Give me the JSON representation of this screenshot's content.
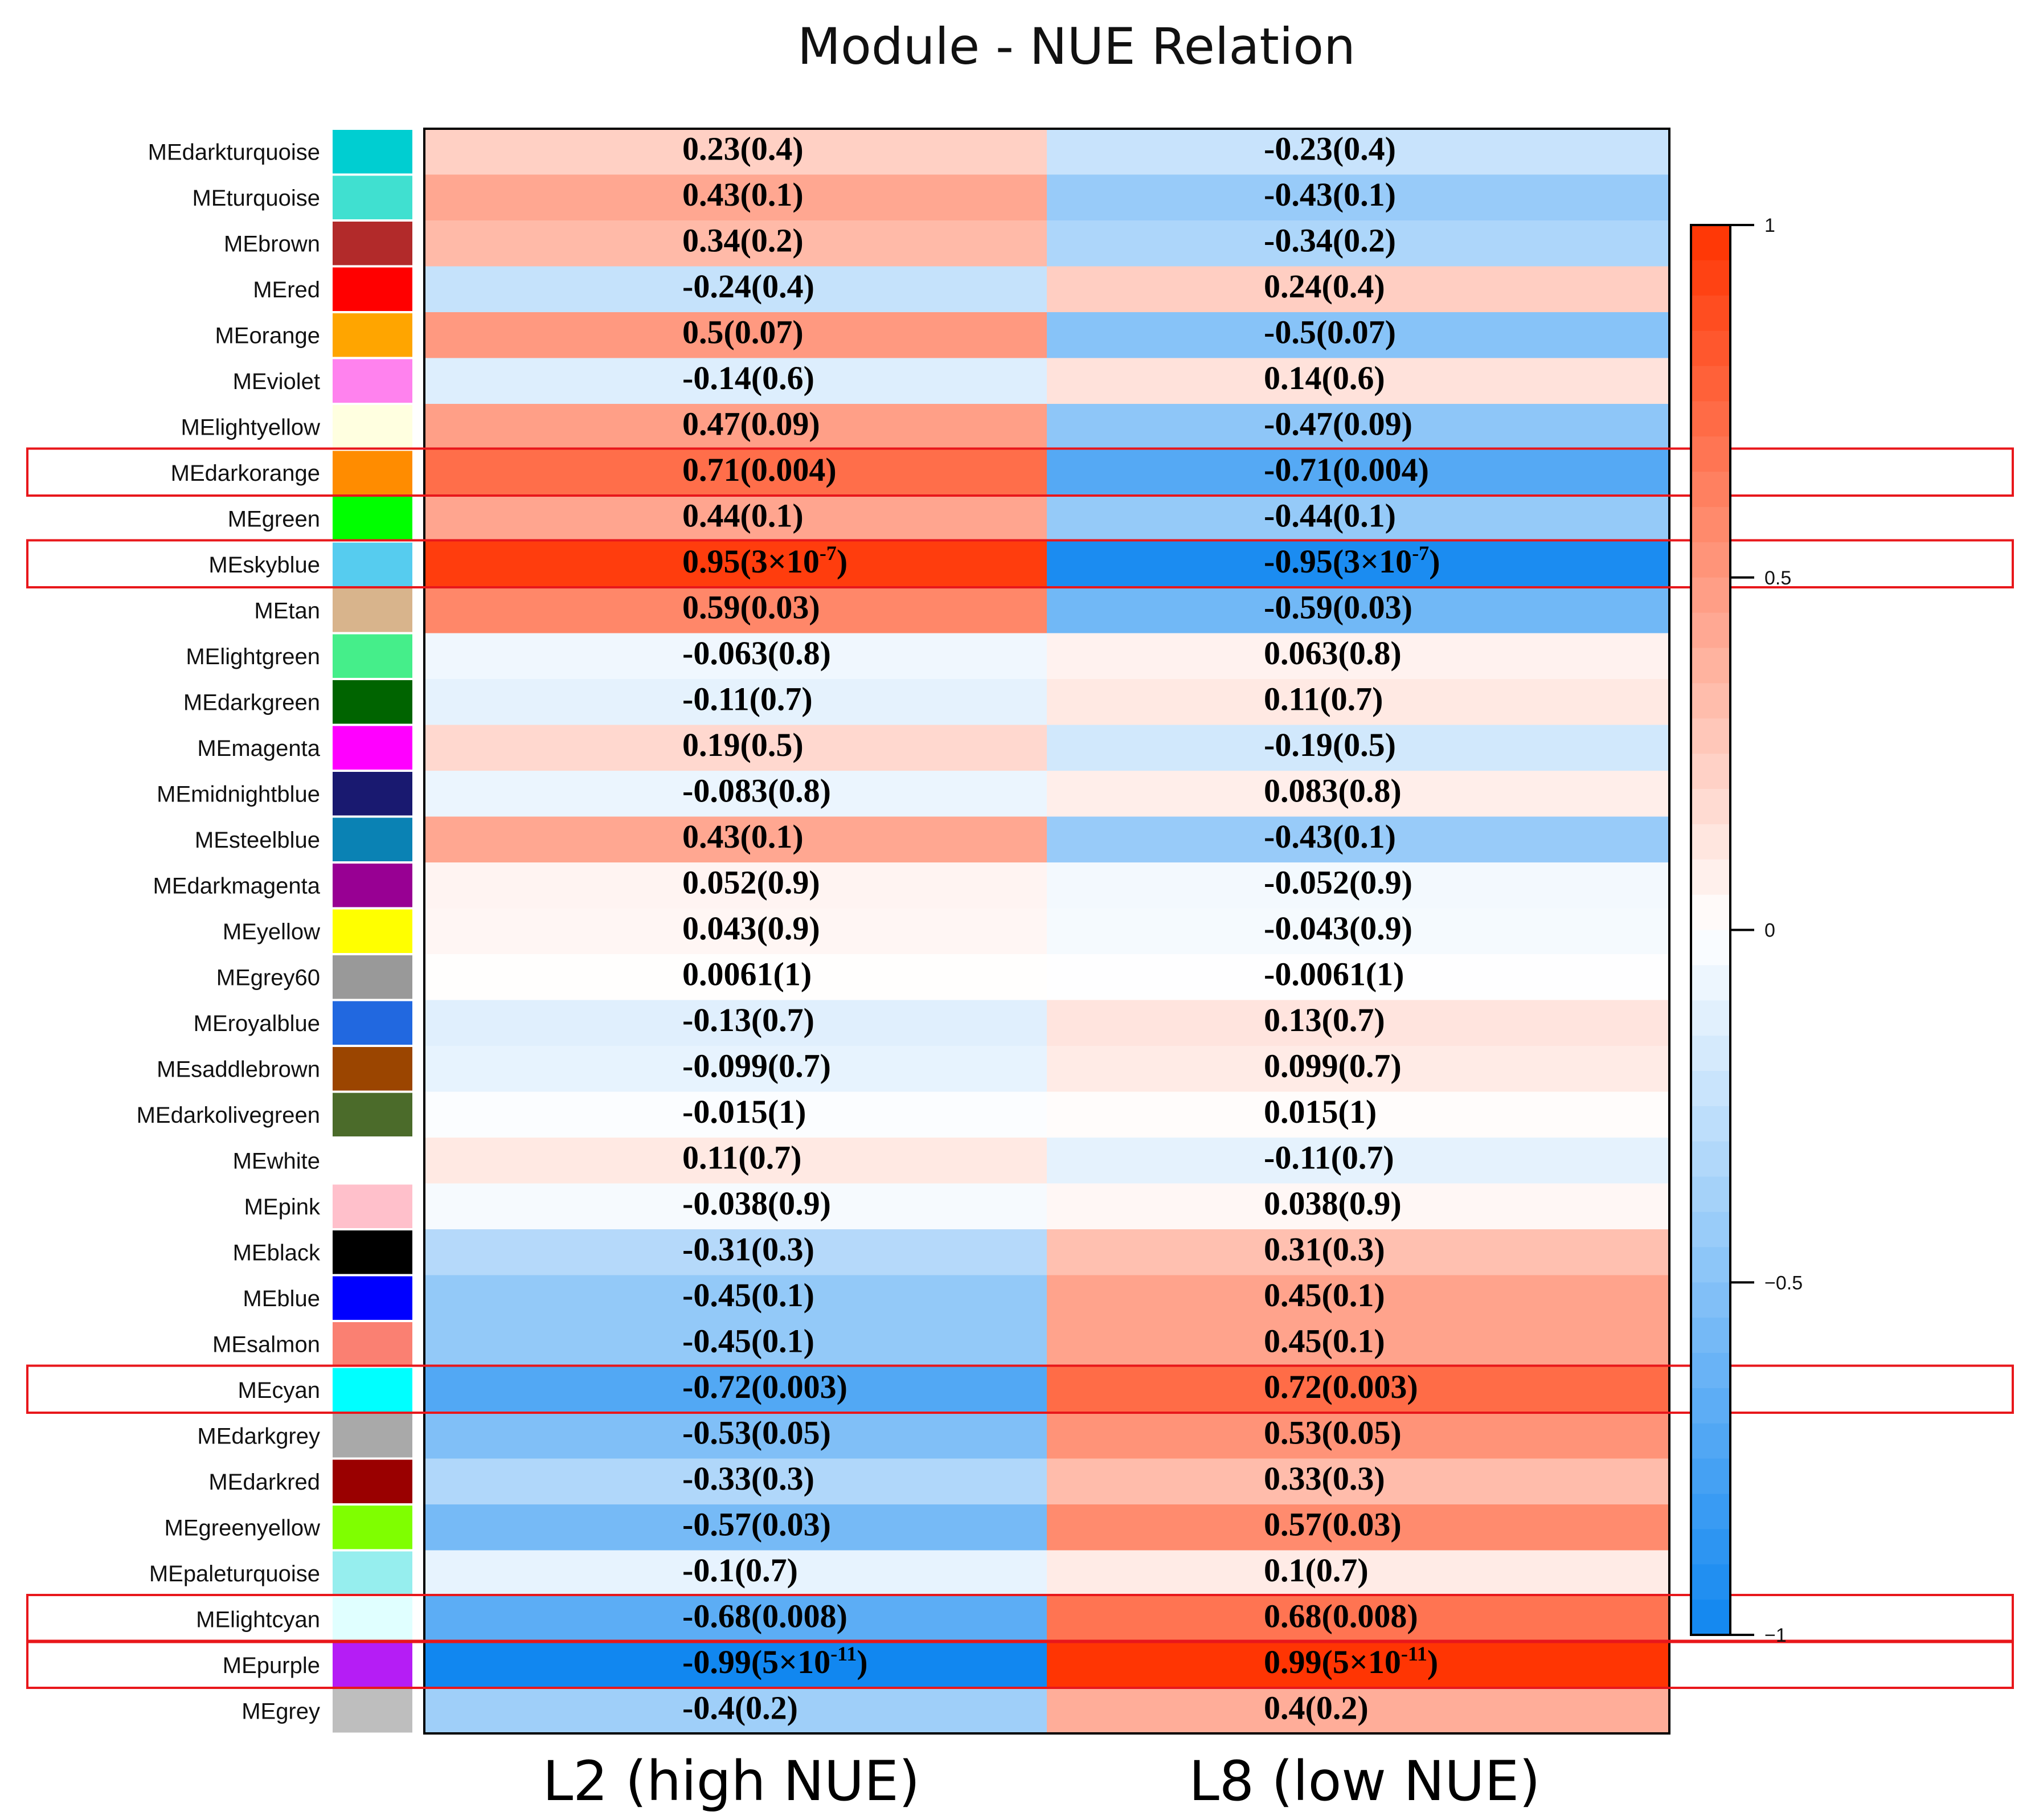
{
  "chart_data": {
    "type": "heatmap",
    "title": "Module - NUE Relation",
    "columns": [
      "L2 (high NUE)",
      "L8 (low NUE)"
    ],
    "rows": [
      {
        "label": "MEdarkturquoise",
        "swatch": "#00CED1",
        "values": [
          0.23,
          -0.23
        ],
        "texts": [
          "0.23(0.4)",
          "-0.23(0.4)"
        ]
      },
      {
        "label": "MEturquoise",
        "swatch": "#40E0D0",
        "values": [
          0.43,
          -0.43
        ],
        "texts": [
          "0.43(0.1)",
          "-0.43(0.1)"
        ]
      },
      {
        "label": "MEbrown",
        "swatch": "#B22A2A",
        "values": [
          0.34,
          -0.34
        ],
        "texts": [
          "0.34(0.2)",
          "-0.34(0.2)"
        ]
      },
      {
        "label": "MEred",
        "swatch": "#FF0000",
        "values": [
          -0.24,
          0.24
        ],
        "texts": [
          "-0.24(0.4)",
          "0.24(0.4)"
        ]
      },
      {
        "label": "MEorange",
        "swatch": "#FFA500",
        "values": [
          0.5,
          -0.5
        ],
        "texts": [
          "0.5(0.07)",
          "-0.5(0.07)"
        ]
      },
      {
        "label": "MEviolet",
        "swatch": "#FF82EE",
        "values": [
          -0.14,
          0.14
        ],
        "texts": [
          "-0.14(0.6)",
          "0.14(0.6)"
        ]
      },
      {
        "label": "MElightyellow",
        "swatch": "#FFFFE0",
        "values": [
          0.47,
          -0.47
        ],
        "texts": [
          "0.47(0.09)",
          "-0.47(0.09)"
        ]
      },
      {
        "label": "MEdarkorange",
        "swatch": "#FF8C00",
        "values": [
          0.71,
          -0.71
        ],
        "texts": [
          "0.71(0.004)",
          "-0.71(0.004)"
        ],
        "highlight": true
      },
      {
        "label": "MEgreen",
        "swatch": "#00FF00",
        "values": [
          0.44,
          -0.44
        ],
        "texts": [
          "0.44(0.1)",
          "-0.44(0.1)"
        ]
      },
      {
        "label": "MEskyblue",
        "swatch": "#56CCEF",
        "values": [
          0.95,
          -0.95
        ],
        "texts": [
          "0.95(3×10",
          "-0.95(3×10"
        ],
        "sup": [
          "-7",
          "-7"
        ],
        "highlight": true
      },
      {
        "label": "MEtan",
        "swatch": "#D8B48C",
        "values": [
          0.59,
          -0.59
        ],
        "texts": [
          "0.59(0.03)",
          "-0.59(0.03)"
        ]
      },
      {
        "label": "MElightgreen",
        "swatch": "#45EE8A",
        "values": [
          -0.063,
          0.063
        ],
        "texts": [
          "-0.063(0.8)",
          "0.063(0.8)"
        ]
      },
      {
        "label": "MEdarkgreen",
        "swatch": "#006400",
        "values": [
          -0.11,
          0.11
        ],
        "texts": [
          "-0.11(0.7)",
          "0.11(0.7)"
        ]
      },
      {
        "label": "MEmagenta",
        "swatch": "#FF00FF",
        "values": [
          0.19,
          -0.19
        ],
        "texts": [
          "0.19(0.5)",
          "-0.19(0.5)"
        ]
      },
      {
        "label": "MEmidnightblue",
        "swatch": "#191970",
        "values": [
          -0.083,
          0.083
        ],
        "texts": [
          "-0.083(0.8)",
          "0.083(0.8)"
        ]
      },
      {
        "label": "MEsteelblue",
        "swatch": "#0A82B4",
        "values": [
          0.43,
          -0.43
        ],
        "texts": [
          "0.43(0.1)",
          "-0.43(0.1)"
        ]
      },
      {
        "label": "MEdarkmagenta",
        "swatch": "#980093",
        "values": [
          0.052,
          -0.052
        ],
        "texts": [
          "0.052(0.9)",
          "-0.052(0.9)"
        ]
      },
      {
        "label": "MEyellow",
        "swatch": "#FFFF00",
        "values": [
          0.043,
          -0.043
        ],
        "texts": [
          "0.043(0.9)",
          "-0.043(0.9)"
        ]
      },
      {
        "label": "MEgrey60",
        "swatch": "#999999",
        "values": [
          0.0061,
          -0.0061
        ],
        "texts": [
          "0.0061(1)",
          "-0.0061(1)"
        ]
      },
      {
        "label": "MEroyalblue",
        "swatch": "#2168E0",
        "values": [
          -0.13,
          0.13
        ],
        "texts": [
          "-0.13(0.7)",
          "0.13(0.7)"
        ]
      },
      {
        "label": "MEsaddlebrown",
        "swatch": "#9B4500",
        "values": [
          -0.099,
          0.099
        ],
        "texts": [
          "-0.099(0.7)",
          "0.099(0.7)"
        ]
      },
      {
        "label": "MEdarkolivegreen",
        "swatch": "#4B6B2A",
        "values": [
          -0.015,
          0.015
        ],
        "texts": [
          "-0.015(1)",
          "0.015(1)"
        ]
      },
      {
        "label": "MEwhite",
        "swatch": "#FFFFFF",
        "values": [
          0.11,
          -0.11
        ],
        "texts": [
          "0.11(0.7)",
          "-0.11(0.7)"
        ]
      },
      {
        "label": "MEpink",
        "swatch": "#FFC0CB",
        "values": [
          -0.038,
          0.038
        ],
        "texts": [
          "-0.038(0.9)",
          "0.038(0.9)"
        ]
      },
      {
        "label": "MEblack",
        "swatch": "#000000",
        "values": [
          -0.31,
          0.31
        ],
        "texts": [
          "-0.31(0.3)",
          "0.31(0.3)"
        ]
      },
      {
        "label": "MEblue",
        "swatch": "#0000FF",
        "values": [
          -0.45,
          0.45
        ],
        "texts": [
          "-0.45(0.1)",
          "0.45(0.1)"
        ]
      },
      {
        "label": "MEsalmon",
        "swatch": "#FA8072",
        "values": [
          -0.45,
          0.45
        ],
        "texts": [
          "-0.45(0.1)",
          "0.45(0.1)"
        ]
      },
      {
        "label": "MEcyan",
        "swatch": "#00FFFF",
        "values": [
          -0.72,
          0.72
        ],
        "texts": [
          "-0.72(0.003)",
          "0.72(0.003)"
        ],
        "highlight": true
      },
      {
        "label": "MEdarkgrey",
        "swatch": "#A9A9A9",
        "values": [
          -0.53,
          0.53
        ],
        "texts": [
          "-0.53(0.05)",
          "0.53(0.05)"
        ]
      },
      {
        "label": "MEdarkred",
        "swatch": "#9A0000",
        "values": [
          -0.33,
          0.33
        ],
        "texts": [
          "-0.33(0.3)",
          "0.33(0.3)"
        ]
      },
      {
        "label": "MEgreenyellow",
        "swatch": "#7FFF00",
        "values": [
          -0.57,
          0.57
        ],
        "texts": [
          "-0.57(0.03)",
          "0.57(0.03)"
        ]
      },
      {
        "label": "MEpaleturquoise",
        "swatch": "#96EEEE",
        "values": [
          -0.1,
          0.1
        ],
        "texts": [
          "-0.1(0.7)",
          "0.1(0.7)"
        ]
      },
      {
        "label": "MElightcyan",
        "swatch": "#E0FFFF",
        "values": [
          -0.68,
          0.68
        ],
        "texts": [
          "-0.68(0.008)",
          "0.68(0.008)"
        ],
        "highlight": true
      },
      {
        "label": "MEpurple",
        "swatch": "#B51DF5",
        "values": [
          -0.99,
          0.99
        ],
        "texts": [
          "-0.99(5×10",
          "0.99(5×10"
        ],
        "sup": [
          "-11",
          "-11"
        ],
        "highlight": true
      },
      {
        "label": "MEgrey",
        "swatch": "#BEBEBE",
        "values": [
          -0.4,
          0.4
        ],
        "texts": [
          "-0.4(0.2)",
          "0.4(0.2)"
        ]
      }
    ],
    "colorbar": {
      "range": [
        -1,
        1
      ],
      "ticks": [
        1,
        0.5,
        0,
        -0.5,
        -1
      ],
      "tick_labels": [
        "1",
        "0.5",
        "0",
        "−0.5",
        "−1"
      ]
    },
    "colors": {
      "positive": "#FF3300",
      "negative": "#0F86F0",
      "neutral": "#FFFFFF",
      "highlight": "#E8171B"
    }
  }
}
